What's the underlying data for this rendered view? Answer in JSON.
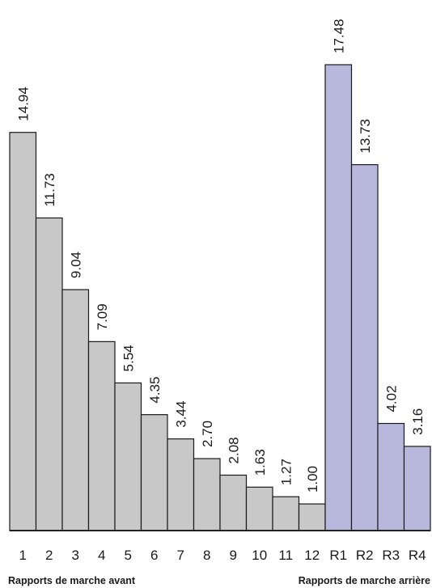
{
  "chart_data": {
    "type": "bar",
    "categories": [
      "1",
      "2",
      "3",
      "4",
      "5",
      "6",
      "7",
      "8",
      "9",
      "10",
      "11",
      "12",
      "R1",
      "R2",
      "R3",
      "R4"
    ],
    "values": [
      14.94,
      11.73,
      9.04,
      7.09,
      5.54,
      4.35,
      3.44,
      2.7,
      2.08,
      1.63,
      1.27,
      1.0,
      17.48,
      13.73,
      4.02,
      3.16
    ],
    "value_labels": [
      "14.94",
      "11.73",
      "9.04",
      "7.09",
      "5.54",
      "4.35",
      "3.44",
      "2.70",
      "2.08",
      "1.63",
      "1.27",
      "1.00",
      "17.48",
      "13.73",
      "4.02",
      "3.16"
    ],
    "ylim": [
      0,
      17.48
    ],
    "groups": [
      {
        "name": "Rapports de marche avant",
        "categories": [
          "1",
          "2",
          "3",
          "4",
          "5",
          "6",
          "7",
          "8",
          "9",
          "10",
          "11",
          "12"
        ],
        "color": "#c8c8c8"
      },
      {
        "name": "Rapports de marche arrière",
        "categories": [
          "R1",
          "R2",
          "R3",
          "R4"
        ],
        "color": "#b8b8dc"
      }
    ],
    "grid": false,
    "legend": "none",
    "title": "",
    "xlabel": "",
    "ylabel": ""
  }
}
